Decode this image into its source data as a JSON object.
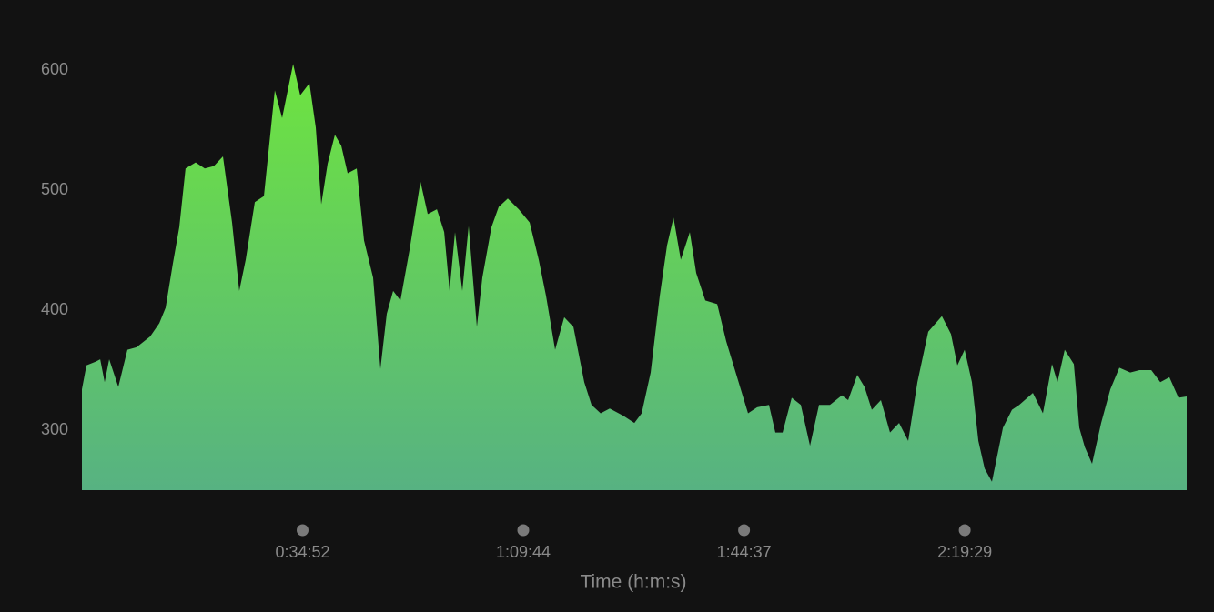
{
  "chart_data": {
    "type": "area",
    "x_label": "Time (h:m:s)",
    "x": [
      0,
      43,
      129,
      173,
      216,
      259,
      345,
      431,
      518,
      647,
      733,
      794,
      863,
      923,
      983,
      1078,
      1165,
      1251,
      1337,
      1423,
      1492,
      1553,
      1639,
      1725,
      1829,
      1898,
      2002,
      2070,
      2157,
      2217,
      2269,
      2329,
      2398,
      2459,
      2519,
      2605,
      2674,
      2761,
      2830,
      2890,
      2950,
      3019,
      3106,
      3209,
      3278,
      3365,
      3434,
      3485,
      3537,
      3606,
      3666,
      3744,
      3796,
      3882,
      3951,
      4037,
      4141,
      4244,
      4331,
      4400,
      4486,
      4572,
      4659,
      4762,
      4831,
      4917,
      5004,
      5133,
      5237,
      5306,
      5392,
      5478,
      5547,
      5608,
      5677,
      5763,
      5823,
      5909,
      6022,
      6108,
      6211,
      6315,
      6401,
      6513,
      6574,
      6643,
      6729,
      6815,
      6902,
      6988,
      7091,
      7204,
      7264,
      7350,
      7419,
      7488,
      7574,
      7661,
      7747,
      7833,
      7920,
      8023,
      8152,
      8239,
      8299,
      8368,
      8437,
      8498,
      8558,
      8627,
      8731,
      8817,
      8886,
      9015,
      9110,
      9196,
      9248,
      9317,
      9403,
      9455,
      9507,
      9576,
      9662,
      9749,
      9835,
      9938,
      10025,
      10137,
      10223,
      10309,
      10395,
      10473
    ],
    "values": [
      334,
      354,
      357,
      359,
      340,
      359,
      336,
      367,
      369,
      378,
      389,
      402,
      439,
      469,
      518,
      523,
      518,
      520,
      528,
      473,
      416,
      442,
      490,
      495,
      583,
      560,
      605,
      579,
      589,
      552,
      488,
      522,
      546,
      537,
      514,
      518,
      458,
      427,
      351,
      397,
      416,
      408,
      450,
      507,
      480,
      484,
      465,
      416,
      465,
      416,
      470,
      386,
      427,
      469,
      486,
      493,
      484,
      473,
      442,
      412,
      367,
      394,
      386,
      340,
      321,
      314,
      318,
      312,
      306,
      314,
      348,
      412,
      454,
      477,
      442,
      465,
      431,
      408,
      405,
      374,
      344,
      314,
      319,
      321,
      298,
      298,
      327,
      321,
      287,
      321,
      321,
      329,
      325,
      346,
      336,
      317,
      325,
      298,
      306,
      291,
      340,
      382,
      395,
      380,
      354,
      367,
      340,
      291,
      268,
      257,
      302,
      317,
      321,
      331,
      314,
      355,
      340,
      367,
      355,
      302,
      286,
      272,
      306,
      334,
      352,
      348,
      350,
      350,
      340,
      344,
      327,
      328
    ],
    "gradient": [
      "#6ee43f",
      "#57b282"
    ],
    "xlim": [
      0,
      10473
    ],
    "ylim": [
      250,
      620
    ],
    "yticks": [
      300,
      400,
      500,
      600
    ],
    "xticks": [
      {
        "value": 2092,
        "label": "0:34:52"
      },
      {
        "value": 4184,
        "label": "1:09:44"
      },
      {
        "value": 6277,
        "label": "1:44:37"
      },
      {
        "value": 8369,
        "label": "2:19:29"
      }
    ]
  }
}
